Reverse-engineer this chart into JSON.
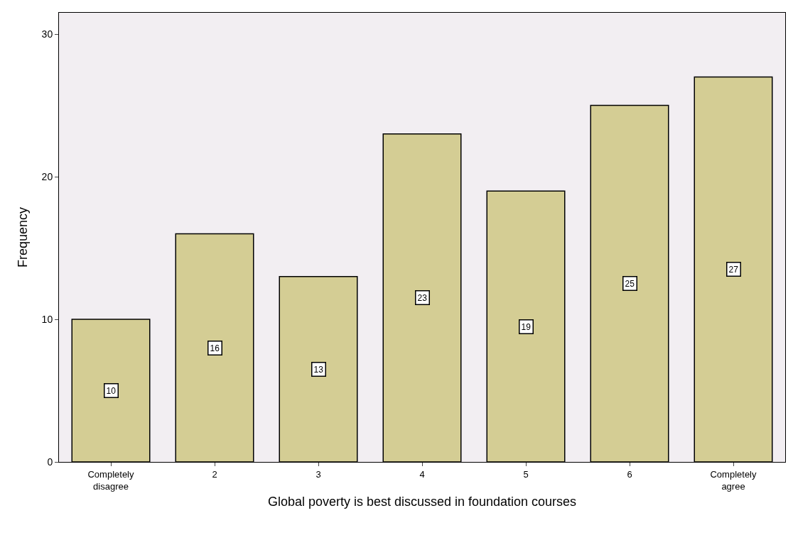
{
  "chart_data": {
    "type": "bar",
    "xlabel": "Global poverty is best discussed in foundation courses",
    "ylabel": "Frequency",
    "categories": [
      "Completely disagree",
      "2",
      "3",
      "4",
      "5",
      "6",
      "Completely agree"
    ],
    "values": [
      10,
      16,
      13,
      23,
      19,
      25,
      27
    ],
    "color": "#d4cd94",
    "ylim": [
      0,
      31.5
    ],
    "yticks": [
      0,
      10,
      20,
      30
    ],
    "grid": false,
    "legend": false,
    "data_labels": true
  }
}
